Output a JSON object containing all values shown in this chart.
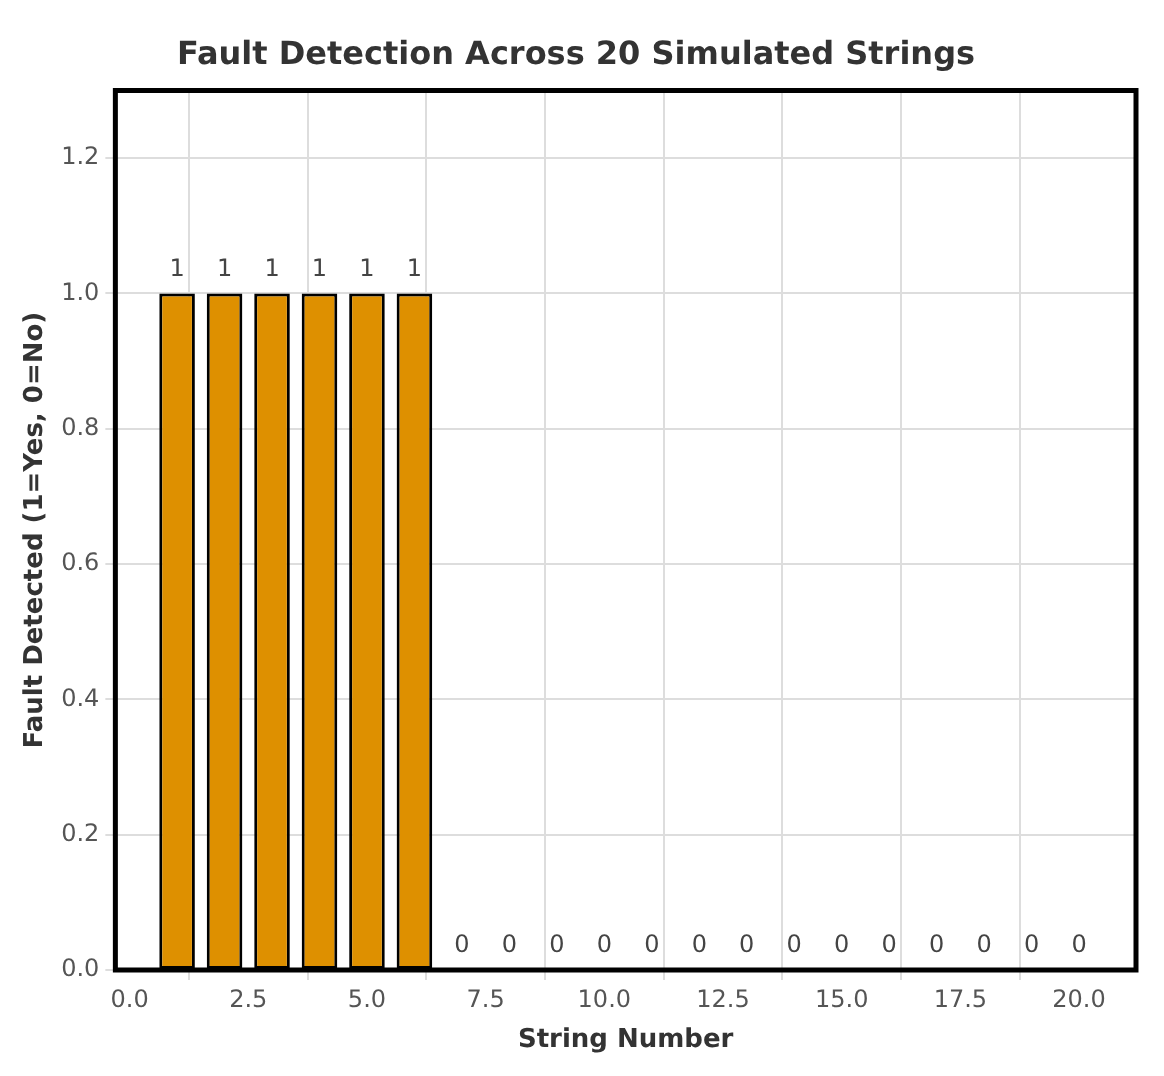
{
  "chart_data": {
    "type": "bar",
    "title": "Fault Detection Across 20 Simulated Strings",
    "xlabel": "String Number",
    "ylabel": "Fault Detected (1=Yes, 0=No)",
    "x": [
      1,
      2,
      3,
      4,
      5,
      6,
      7,
      8,
      9,
      10,
      11,
      12,
      13,
      14,
      15,
      16,
      17,
      18,
      19,
      20
    ],
    "values": [
      1,
      1,
      1,
      1,
      1,
      1,
      0,
      0,
      0,
      0,
      0,
      0,
      0,
      0,
      0,
      0,
      0,
      0,
      0,
      0
    ],
    "color": "#de9000",
    "xlim": [
      -0.3,
      21.2
    ],
    "xticks": [
      {
        "value": 0,
        "label": "0.0"
      },
      {
        "value": 2.5,
        "label": "2.5"
      },
      {
        "value": 5,
        "label": "5.0"
      },
      {
        "value": 7.5,
        "label": "7.5"
      },
      {
        "value": 10,
        "label": "10.0"
      },
      {
        "value": 12.5,
        "label": "12.5"
      },
      {
        "value": 15,
        "label": "15.0"
      },
      {
        "value": 17.5,
        "label": "17.5"
      },
      {
        "value": 20,
        "label": "20.0"
      }
    ],
    "ylim": [
      0,
      1.3
    ],
    "yticks": [
      {
        "value": 0,
        "label": "0.0"
      },
      {
        "value": 0.2,
        "label": "0.2"
      },
      {
        "value": 0.4,
        "label": "0.4"
      },
      {
        "value": 0.6,
        "label": "0.6"
      },
      {
        "value": 0.8,
        "label": "0.8"
      },
      {
        "value": 1,
        "label": "1.0"
      },
      {
        "value": 1.2,
        "label": "1.2"
      }
    ],
    "grid": true,
    "data_labels": true
  }
}
